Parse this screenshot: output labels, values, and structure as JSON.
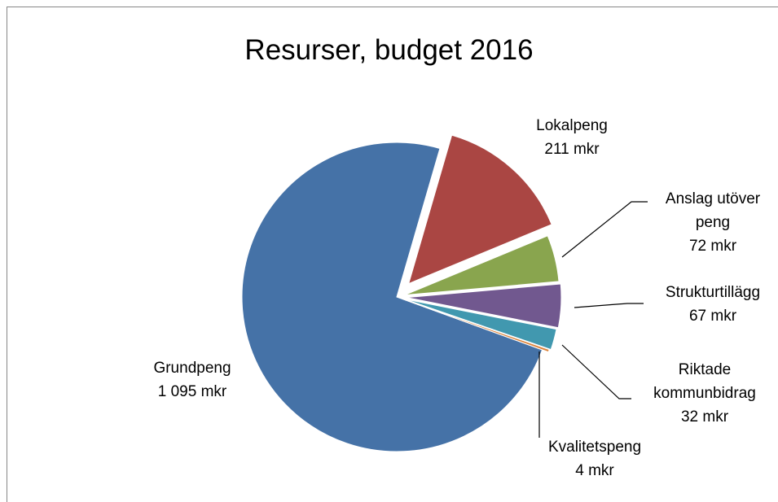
{
  "chart_data": {
    "type": "pie",
    "title": "Resurser, budget 2016",
    "categories": [
      "Grundpeng",
      "Lokalpeng",
      "Anslag utöver peng",
      "Strukturtillägg",
      "Riktade kommunbidrag",
      "Kvalitetspeng"
    ],
    "values": [
      1095,
      211,
      72,
      67,
      32,
      4
    ],
    "value_labels": [
      "1 095 mkr",
      "211 mkr",
      "72 mkr",
      "67 mkr",
      "32 mkr",
      "4 mkr"
    ],
    "colors": [
      "#4572a7",
      "#aa4643",
      "#89a54e",
      "#71588f",
      "#4198af",
      "#db843d"
    ]
  }
}
